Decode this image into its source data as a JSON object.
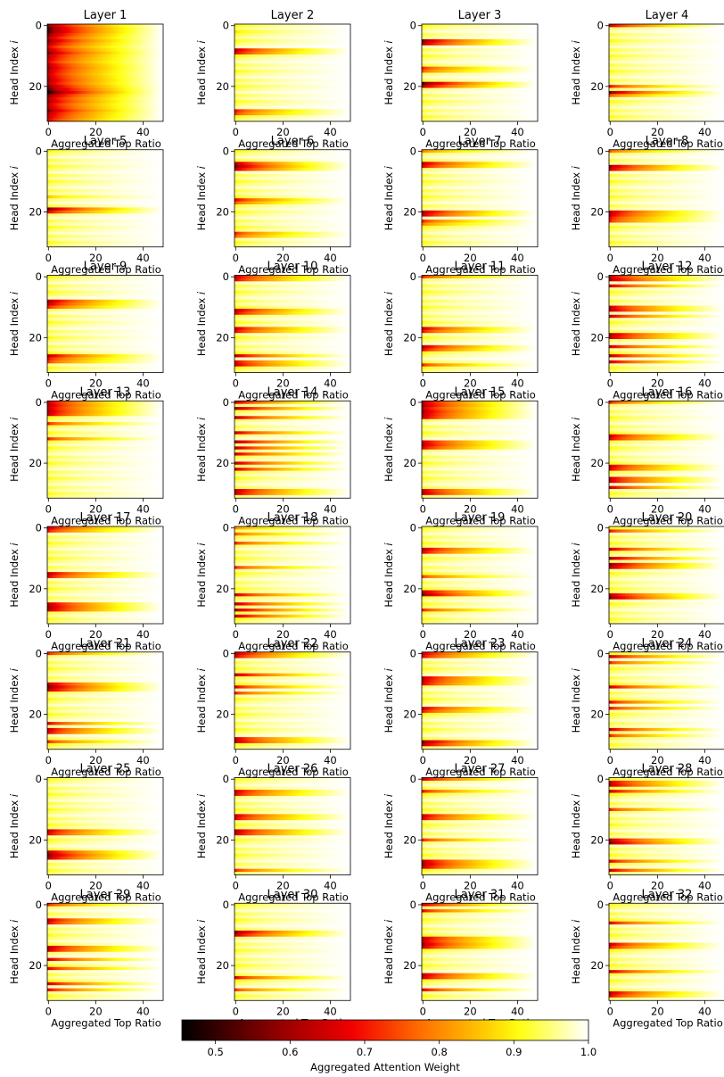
{
  "chart_data": {
    "type": "heatmap",
    "layout": {
      "rows": 8,
      "cols": 4
    },
    "shared": {
      "xlabel": "Aggregated Top Ratio",
      "ylabel": "Head Index",
      "ylabel_var": "i",
      "x_ticks": [
        0,
        20,
        40
      ],
      "y_ticks": [
        0,
        20
      ],
      "x_range": [
        0,
        49
      ],
      "y_range": [
        0,
        31
      ]
    },
    "colorbar": {
      "label": "Aggregated Attention Weight",
      "range": [
        0.455,
        1.0
      ],
      "ticks": [
        0.5,
        0.6,
        0.7,
        0.8,
        0.9,
        1.0
      ],
      "tick_labels": [
        "0.5",
        "0.6",
        "0.7",
        "0.8",
        "0.9",
        "1.0"
      ],
      "colormap": "hot",
      "colors": [
        "#000000",
        "#e60000",
        "#ff7a00",
        "#ffff00",
        "#ffffff"
      ]
    },
    "panels": [
      {
        "title": "Layer 1",
        "heads": {
          "0": 0.55,
          "1": 0.5,
          "2": 0.5,
          "3": 0.55,
          "4": 0.6,
          "5": 0.55,
          "6": 0.6,
          "7": 0.65,
          "8": 0.6,
          "9": 0.55,
          "10": 0.6,
          "11": 0.62,
          "12": 0.65,
          "13": 0.6,
          "14": 0.58,
          "15": 0.6,
          "16": 0.62,
          "17": 0.6,
          "18": 0.58,
          "19": 0.6,
          "20": 0.55,
          "21": 0.5,
          "22": 0.45,
          "23": 0.55,
          "24": 0.6,
          "25": 0.58,
          "26": 0.62,
          "27": 0.6,
          "28": 0.55,
          "29": 0.6,
          "30": 0.62,
          "31": 0.65
        }
      },
      {
        "title": "Layer 2",
        "heads": {
          "2": 0.88,
          "8": 0.6,
          "9": 0.65,
          "28": 0.68,
          "29": 0.72
        }
      },
      {
        "title": "Layer 3",
        "heads": {
          "5": 0.55,
          "6": 0.6,
          "14": 0.7,
          "15": 0.75,
          "19": 0.5,
          "20": 0.6
        }
      },
      {
        "title": "Layer 4",
        "heads": {
          "0": 0.62,
          "20": 0.68,
          "22": 0.55,
          "23": 0.75
        }
      },
      {
        "title": "Layer 5",
        "heads": {
          "15": 0.85,
          "19": 0.55,
          "20": 0.65
        }
      },
      {
        "title": "Layer 6",
        "heads": {
          "4": 0.6,
          "5": 0.55,
          "6": 0.62,
          "16": 0.65,
          "17": 0.75,
          "27": 0.7,
          "28": 0.75
        }
      },
      {
        "title": "Layer 7",
        "heads": {
          "0": 0.78,
          "4": 0.6,
          "5": 0.65,
          "20": 0.58,
          "21": 0.62,
          "23": 0.7,
          "24": 0.78
        }
      },
      {
        "title": "Layer 8",
        "heads": {
          "0": 0.75,
          "5": 0.58,
          "6": 0.62,
          "20": 0.6,
          "21": 0.62,
          "22": 0.68,
          "23": 0.7
        }
      },
      {
        "title": "Layer 9",
        "heads": {
          "8": 0.58,
          "9": 0.62,
          "10": 0.7,
          "26": 0.6,
          "27": 0.68,
          "28": 0.72
        }
      },
      {
        "title": "Layer 10",
        "heads": {
          "0": 0.62,
          "1": 0.65,
          "11": 0.6,
          "12": 0.65,
          "17": 0.62,
          "18": 0.66,
          "26": 0.6,
          "28": 0.65,
          "29": 0.62
        }
      },
      {
        "title": "Layer 11",
        "heads": {
          "0": 0.7,
          "17": 0.62,
          "18": 0.68,
          "23": 0.6,
          "24": 0.66,
          "29": 0.7
        }
      },
      {
        "title": "Layer 12",
        "heads": {
          "0": 0.62,
          "1": 0.58,
          "3": 0.62,
          "10": 0.62,
          "11": 0.6,
          "13": 0.62,
          "19": 0.58,
          "20": 0.6,
          "23": 0.62,
          "26": 0.6,
          "28": 0.62
        }
      },
      {
        "title": "Layer 13",
        "heads": {
          "0": 0.62,
          "1": 0.6,
          "2": 0.62,
          "3": 0.6,
          "4": 0.62,
          "7": 0.7,
          "12": 0.7
        }
      },
      {
        "title": "Layer 14",
        "heads": {
          "0": 0.62,
          "2": 0.58,
          "5": 0.6,
          "10": 0.62,
          "13": 0.58,
          "15": 0.6,
          "17": 0.62,
          "20": 0.6,
          "22": 0.62,
          "29": 0.6,
          "30": 0.62
        }
      },
      {
        "title": "Layer 15",
        "heads": {
          "0": 0.6,
          "1": 0.58,
          "2": 0.62,
          "3": 0.58,
          "4": 0.6,
          "5": 0.62,
          "13": 0.62,
          "14": 0.6,
          "15": 0.65,
          "29": 0.62,
          "30": 0.6
        }
      },
      {
        "title": "Layer 16",
        "heads": {
          "0": 0.7,
          "11": 0.62,
          "12": 0.65,
          "21": 0.62,
          "22": 0.65,
          "25": 0.62,
          "26": 0.62,
          "28": 0.62
        }
      },
      {
        "title": "Layer 17",
        "heads": {
          "0": 0.62,
          "1": 0.68,
          "15": 0.6,
          "16": 0.65,
          "25": 0.6,
          "26": 0.58,
          "27": 0.6
        }
      },
      {
        "title": "Layer 18",
        "heads": {
          "0": 0.8,
          "2": 0.75,
          "5": 0.7,
          "13": 0.7,
          "22": 0.62,
          "25": 0.6,
          "27": 0.58,
          "29": 0.6
        }
      },
      {
        "title": "Layer 19",
        "heads": {
          "7": 0.6,
          "8": 0.65,
          "16": 0.72,
          "21": 0.6,
          "22": 0.55,
          "27": 0.7
        }
      },
      {
        "title": "Layer 20",
        "heads": {
          "1": 0.68,
          "7": 0.62,
          "10": 0.58,
          "12": 0.55,
          "13": 0.6,
          "22": 0.6,
          "23": 0.55
        }
      },
      {
        "title": "Layer 21",
        "heads": {
          "0": 0.7,
          "10": 0.6,
          "11": 0.55,
          "12": 0.6,
          "23": 0.65,
          "25": 0.62,
          "26": 0.65,
          "29": 0.7
        }
      },
      {
        "title": "Layer 22",
        "heads": {
          "0": 0.6,
          "1": 0.65,
          "7": 0.6,
          "11": 0.65,
          "13": 0.7,
          "28": 0.62,
          "29": 0.6
        }
      },
      {
        "title": "Layer 23",
        "heads": {
          "0": 0.62,
          "1": 0.66,
          "8": 0.6,
          "9": 0.62,
          "10": 0.65,
          "18": 0.62,
          "19": 0.68,
          "29": 0.55,
          "30": 0.6
        }
      },
      {
        "title": "Layer 24",
        "heads": {
          "1": 0.62,
          "3": 0.7,
          "11": 0.62,
          "16": 0.66,
          "18": 0.68,
          "25": 0.62,
          "27": 0.7
        }
      },
      {
        "title": "Layer 25",
        "heads": {
          "17": 0.62,
          "18": 0.65,
          "24": 0.6,
          "25": 0.55,
          "26": 0.6
        }
      },
      {
        "title": "Layer 26",
        "heads": {
          "4": 0.62,
          "5": 0.65,
          "12": 0.62,
          "13": 0.65,
          "17": 0.6,
          "18": 0.62,
          "30": 0.7
        }
      },
      {
        "title": "Layer 27",
        "heads": {
          "0": 0.62,
          "4": 0.68,
          "12": 0.62,
          "13": 0.65,
          "20": 0.7,
          "27": 0.6,
          "28": 0.58,
          "29": 0.62
        }
      },
      {
        "title": "Layer 28",
        "heads": {
          "1": 0.62,
          "2": 0.6,
          "4": 0.62,
          "10": 0.7,
          "20": 0.6,
          "21": 0.55,
          "27": 0.65,
          "30": 0.62
        }
      },
      {
        "title": "Layer 29",
        "heads": {
          "0": 0.7,
          "5": 0.62,
          "6": 0.66,
          "14": 0.6,
          "15": 0.62,
          "18": 0.62,
          "21": 0.65,
          "26": 0.62,
          "28": 0.66
        }
      },
      {
        "title": "Layer 30",
        "heads": {
          "9": 0.55,
          "10": 0.62,
          "24": 0.65,
          "28": 0.72
        }
      },
      {
        "title": "Layer 31",
        "heads": {
          "0": 0.62,
          "2": 0.66,
          "11": 0.6,
          "12": 0.62,
          "13": 0.58,
          "14": 0.62,
          "23": 0.6,
          "24": 0.62,
          "28": 0.65
        }
      },
      {
        "title": "Layer 32",
        "heads": {
          "6": 0.65,
          "13": 0.62,
          "14": 0.68,
          "22": 0.62,
          "29": 0.6,
          "30": 0.65
        }
      }
    ]
  }
}
